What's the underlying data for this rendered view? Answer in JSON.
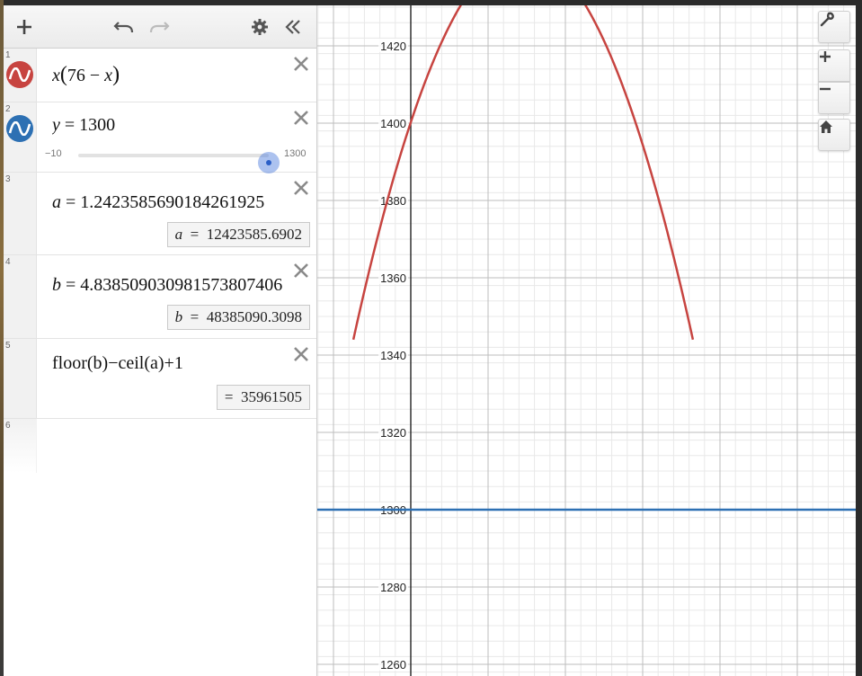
{
  "toolbar": {
    "add_icon": "plus-icon",
    "undo_icon": "undo-icon",
    "redo_icon": "redo-icon",
    "settings_icon": "gear-icon",
    "collapse_icon": "double-chevron-left-icon"
  },
  "expressions": [
    {
      "index": "1",
      "latex_parts": [
        "x",
        "(",
        "76 − ",
        "x",
        ")"
      ],
      "color": "#c74440",
      "icon": "graph-wave-icon"
    },
    {
      "index": "2",
      "lhs": "y",
      "eq": " = ",
      "rhs": "1300",
      "color": "#2d70b3",
      "icon": "graph-wave-icon",
      "slider": {
        "min": "−10",
        "max": "1300",
        "value": 1300,
        "min_value": -10
      }
    },
    {
      "index": "3",
      "lhs": "a",
      "eq": " = ",
      "rhs": "1.2423585690184261925",
      "result_lhs": "a",
      "result_eq": "=",
      "result_value": "12423585.6902"
    },
    {
      "index": "4",
      "lhs": "b",
      "eq": " = ",
      "rhs": "4.838509030981573807406",
      "result_lhs": "b",
      "result_eq": "=",
      "result_value": "48385090.3098"
    },
    {
      "index": "5",
      "text": "floor(b)−ceil(a)+1",
      "result_eq": "=",
      "result_value": "35961505"
    },
    {
      "index": "6"
    }
  ],
  "graph": {
    "y_ticks": [
      "1420",
      "1400",
      "1380",
      "1360",
      "1340",
      "1320",
      "1300",
      "1280",
      "1260"
    ],
    "curve_color": "#c74440",
    "line_color": "#2d70b3",
    "line_value": 1300,
    "tools": {
      "settings_icon": "wrench-icon",
      "zoom_in_icon": "plus-icon",
      "zoom_out_icon": "minus-icon",
      "home_icon": "home-icon"
    }
  }
}
